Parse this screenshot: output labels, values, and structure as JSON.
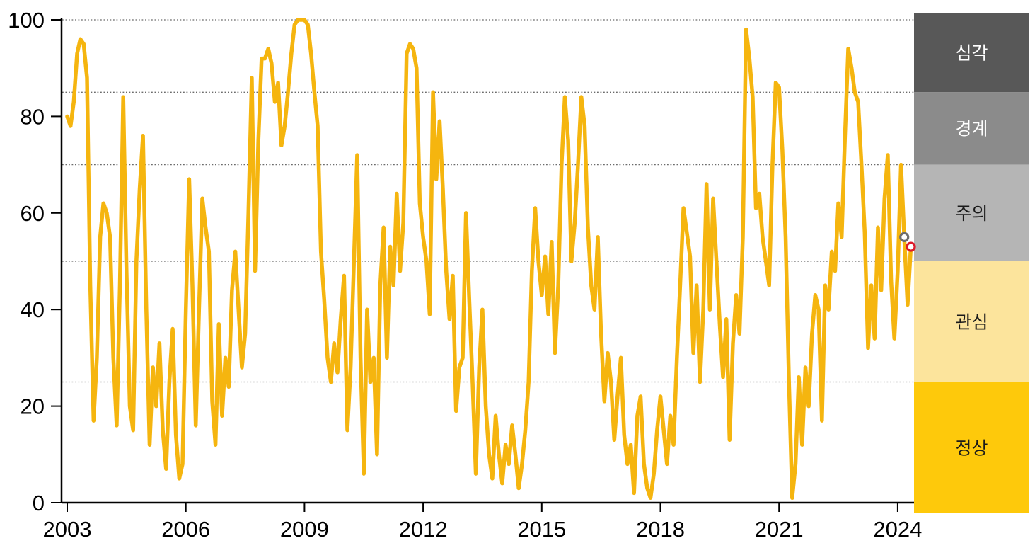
{
  "chart_data": {
    "type": "line",
    "title": "",
    "x_axis": {
      "tick_labels": [
        "2003",
        "2006",
        "2009",
        "2012",
        "2015",
        "2018",
        "2021",
        "2024"
      ],
      "tick_years": [
        2003,
        2006,
        2009,
        2012,
        2015,
        2018,
        2021,
        2024
      ]
    },
    "y_axis": {
      "tick_labels": [
        "0",
        "20",
        "40",
        "60",
        "80",
        "100"
      ],
      "tick_values": [
        0,
        20,
        40,
        60,
        80,
        100
      ],
      "range": [
        0,
        100
      ]
    },
    "gridlines_at_values": [
      100,
      85,
      70,
      50,
      25
    ],
    "grid_on": true,
    "series": [
      {
        "name": "risk-index",
        "color": "#F5B50F",
        "frequency": "monthly",
        "start_month": "2003-01",
        "end_month": "2024-05",
        "values": [
          80,
          78,
          83,
          93,
          96,
          95,
          88,
          45,
          17,
          30,
          55,
          62,
          60,
          55,
          30,
          16,
          45,
          84,
          48,
          20,
          15,
          50,
          65,
          76,
          40,
          12,
          28,
          20,
          33,
          15,
          7,
          25,
          36,
          14,
          5,
          8,
          40,
          67,
          45,
          16,
          40,
          63,
          57,
          52,
          21,
          12,
          37,
          18,
          30,
          24,
          44,
          52,
          40,
          28,
          35,
          60,
          88,
          48,
          75,
          92,
          92,
          94,
          91,
          83,
          87,
          74,
          78,
          85,
          93,
          99,
          100,
          100,
          100,
          99,
          93,
          85,
          78,
          52,
          42,
          30,
          25,
          33,
          27,
          38,
          47,
          15,
          28,
          50,
          72,
          30,
          6,
          40,
          25,
          30,
          10,
          45,
          57,
          30,
          53,
          45,
          64,
          48,
          58,
          93,
          95,
          94,
          90,
          62,
          55,
          50,
          39,
          85,
          67,
          79,
          65,
          48,
          38,
          47,
          19,
          28,
          30,
          60,
          42,
          25,
          6,
          28,
          40,
          20,
          10,
          5,
          18,
          10,
          4,
          12,
          8,
          16,
          10,
          3,
          8,
          15,
          25,
          48,
          61,
          50,
          43,
          51,
          39,
          54,
          31,
          45,
          70,
          84,
          75,
          50,
          58,
          70,
          84,
          78,
          57,
          45,
          40,
          55,
          35,
          21,
          31,
          25,
          13,
          22,
          30,
          14,
          8,
          12,
          2,
          18,
          22,
          8,
          3,
          1,
          6,
          15,
          22,
          15,
          8,
          18,
          12,
          30,
          45,
          61,
          56,
          51,
          31,
          45,
          25,
          40,
          66,
          40,
          63,
          50,
          37,
          26,
          38,
          13,
          33,
          43,
          35,
          55,
          98,
          92,
          84,
          61,
          64,
          55,
          50,
          45,
          70,
          87,
          86,
          73,
          55,
          25,
          1,
          8,
          26,
          12,
          28,
          20,
          35,
          43,
          40,
          17,
          45,
          40,
          52,
          48,
          62,
          55,
          76,
          94,
          90,
          85,
          83,
          70,
          56,
          32,
          45,
          34,
          57,
          44,
          63,
          72,
          46,
          34,
          48,
          70,
          55,
          41,
          53
        ]
      }
    ],
    "markers": [
      {
        "name": "previous-point-marker",
        "date": "2024-03",
        "value": 55,
        "color": "#6E6E6E",
        "style": "open-circle"
      },
      {
        "name": "latest-point-marker",
        "date": "2024-05",
        "value": 53,
        "color": "#DD1A2A",
        "style": "open-circle"
      }
    ],
    "risk_bands": [
      {
        "label": "심각",
        "range": [
          85,
          100
        ],
        "color": "#585858",
        "text_color": "#FFFFFF"
      },
      {
        "label": "경계",
        "range": [
          70,
          85
        ],
        "color": "#8B8B8B",
        "text_color": "#FFFFFF"
      },
      {
        "label": "주의",
        "range": [
          50,
          70
        ],
        "color": "#B5B5B5",
        "text_color": "#1A1A1A"
      },
      {
        "label": "관심",
        "range": [
          25,
          50
        ],
        "color": "#FCE49C",
        "text_color": "#1A1A1A"
      },
      {
        "label": "정상",
        "range": [
          0,
          25
        ],
        "color": "#FEC90B",
        "text_color": "#1A1A1A"
      }
    ],
    "colors": {
      "axis": "#000000",
      "gridline": "#6B6B6B",
      "background": "#FFFFFF"
    }
  }
}
